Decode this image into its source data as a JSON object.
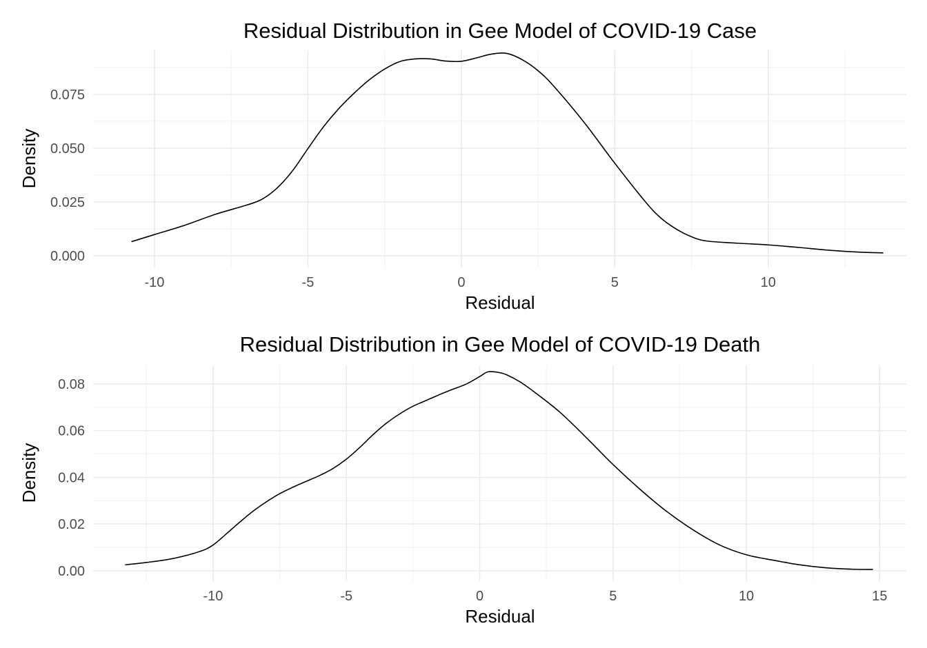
{
  "chart_data": [
    {
      "type": "line",
      "title": "Residual Distribution in Gee Model of COVID-19 Case",
      "xlabel": "Residual",
      "ylabel": "Density",
      "xlim": [
        -12.0,
        14.5
      ],
      "ylim": [
        -0.0055,
        0.0955
      ],
      "x_ticks": [
        -10,
        -5,
        0,
        5,
        10
      ],
      "x_tick_labels": [
        "-10",
        "-5",
        "0",
        "5",
        "10"
      ],
      "y_ticks": [
        0,
        0.025,
        0.05,
        0.075
      ],
      "y_tick_labels": [
        "0.000",
        "0.025",
        "0.050",
        "0.075"
      ],
      "grid": true,
      "series": [
        {
          "x": [
            -10.75,
            -10.0,
            -9.0,
            -8.0,
            -7.0,
            -6.5,
            -6.0,
            -5.5,
            -5.0,
            -4.5,
            -4.0,
            -3.5,
            -3.0,
            -2.5,
            -2.0,
            -1.5,
            -1.0,
            -0.5,
            0.0,
            0.5,
            1.0,
            1.5,
            2.0,
            2.5,
            3.0,
            4.0,
            5.0,
            6.0,
            6.5,
            7.0,
            7.5,
            8.0,
            9.0,
            10.0,
            11.0,
            12.0,
            13.0,
            13.75
          ],
          "y": [
            0.0065,
            0.0098,
            0.0142,
            0.0193,
            0.0235,
            0.0262,
            0.0315,
            0.0395,
            0.0498,
            0.0598,
            0.0683,
            0.0755,
            0.0818,
            0.0868,
            0.0903,
            0.0915,
            0.0915,
            0.0905,
            0.0904,
            0.092,
            0.0938,
            0.094,
            0.091,
            0.086,
            0.079,
            0.062,
            0.043,
            0.025,
            0.0175,
            0.0124,
            0.0088,
            0.0068,
            0.0058,
            0.005,
            0.0038,
            0.0025,
            0.0016,
            0.0013
          ]
        }
      ]
    },
    {
      "type": "line",
      "title": "Residual Distribution in Gee Model of COVID-19 Death",
      "xlabel": "Residual",
      "ylabel": "Density",
      "xlim": [
        -14.5,
        16.0
      ],
      "ylim": [
        -0.0045,
        0.088
      ],
      "x_ticks": [
        -10,
        -5,
        0,
        5,
        10,
        15
      ],
      "x_tick_labels": [
        "-10",
        "-5",
        "0",
        "5",
        "10",
        "15"
      ],
      "y_ticks": [
        0,
        0.02,
        0.04,
        0.06,
        0.08
      ],
      "y_tick_labels": [
        "0.00",
        "0.02",
        "0.04",
        "0.06",
        "0.08"
      ],
      "grid": true,
      "series": [
        {
          "x": [
            -13.3,
            -12.5,
            -11.5,
            -10.5,
            -10.0,
            -9.5,
            -9.0,
            -8.5,
            -8.0,
            -7.5,
            -7.0,
            -6.5,
            -6.0,
            -5.5,
            -5.0,
            -4.5,
            -4.0,
            -3.5,
            -3.0,
            -2.5,
            -2.0,
            -1.5,
            -1.0,
            -0.5,
            0.0,
            0.3,
            0.7,
            1.0,
            1.5,
            2.0,
            3.0,
            4.0,
            5.0,
            6.0,
            7.0,
            8.0,
            9.0,
            10.0,
            11.0,
            12.0,
            13.0,
            14.0,
            14.75
          ],
          "y": [
            0.0025,
            0.0035,
            0.0052,
            0.0082,
            0.011,
            0.0158,
            0.0208,
            0.0255,
            0.0295,
            0.033,
            0.0358,
            0.0383,
            0.0408,
            0.0438,
            0.0478,
            0.0528,
            0.0583,
            0.0632,
            0.0672,
            0.0705,
            0.073,
            0.0755,
            0.0778,
            0.08,
            0.0832,
            0.0852,
            0.085,
            0.084,
            0.081,
            0.077,
            0.068,
            0.057,
            0.0455,
            0.035,
            0.0255,
            0.0175,
            0.011,
            0.0068,
            0.0045,
            0.0025,
            0.0012,
            0.0006,
            0.0005
          ]
        }
      ]
    }
  ]
}
